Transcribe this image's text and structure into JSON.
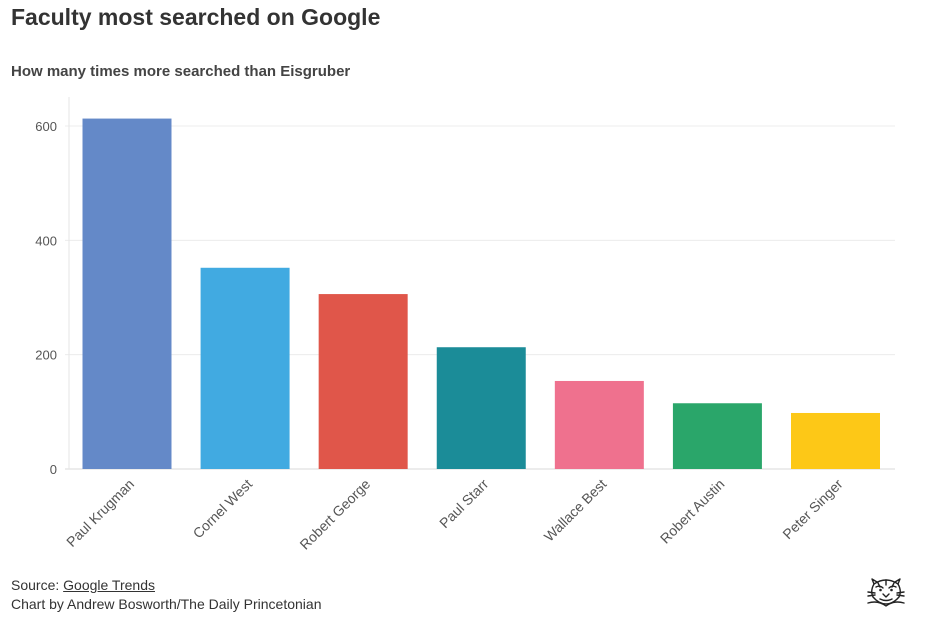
{
  "header": {
    "title": "Faculty most searched on Google",
    "subtitle": "How many times more searched than Eisgruber"
  },
  "footer": {
    "source_prefix": "Source: ",
    "source_link": "Google Trends",
    "credit": "Chart by Andrew Bosworth/The Daily Princetonian"
  },
  "logo": {
    "icon": "daily-princetonian-tiger-logo"
  },
  "chart_data": {
    "type": "bar",
    "title": "Faculty most searched on Google",
    "subtitle": "How many times more searched than Eisgruber",
    "xlabel": "",
    "ylabel": "",
    "categories": [
      "Paul Krugman",
      "Cornel West",
      "Robert George",
      "Paul Starr",
      "Wallace Best",
      "Robert Austin",
      "Peter Singer"
    ],
    "values": [
      613,
      352,
      306,
      213,
      154,
      115,
      98
    ],
    "colors": [
      "#6489c8",
      "#41aae1",
      "#e0564a",
      "#1b8c98",
      "#ef718e",
      "#2aa66a",
      "#fdc817"
    ],
    "yticks": [
      0,
      200,
      400,
      600
    ],
    "ylim": [
      0,
      650
    ],
    "grid": true,
    "legend": "none"
  }
}
